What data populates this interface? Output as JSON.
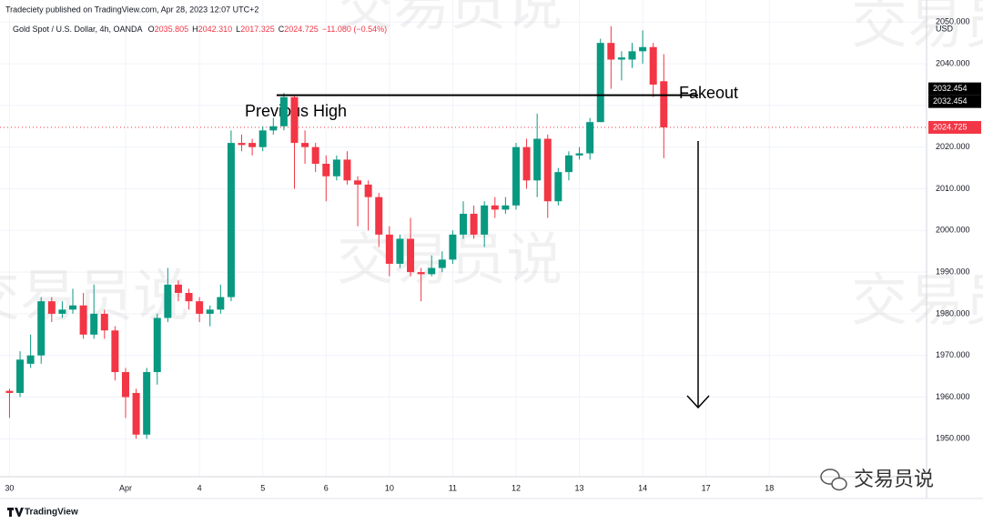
{
  "chart_data": {
    "type": "candlestick",
    "publisher": "Tradeciety published on TradingView.com, Apr 28, 2023 12:07 UTC+2",
    "symbol": "Gold Spot / U.S. Dollar, 4h, OANDA",
    "ohlc_header": [
      {
        "key": "O",
        "value": "2035.805"
      },
      {
        "key": "H",
        "value": "2042.310"
      },
      {
        "key": "L",
        "value": "2017.325"
      },
      {
        "key": "C",
        "value": "2024.725"
      }
    ],
    "change": "−11.080 (−0.54%)",
    "currency": "USD",
    "brand": "TradingView",
    "watermark": "交易员说",
    "up_color": "#089981",
    "down_color": "#f23645",
    "open": [
      1961.5,
      1961,
      1968,
      1970,
      1983,
      1980,
      1981,
      1982,
      1975,
      1980,
      1976,
      1966,
      1961,
      1951,
      1966,
      1979,
      1987,
      1985,
      1983,
      1980,
      1981,
      1984,
      2021,
      2021,
      2020,
      2024,
      2025,
      2032,
      2021,
      2020,
      2016,
      2013,
      2017,
      2012,
      2011,
      2008,
      1999,
      1992,
      1998,
      1990,
      1989.5,
      1991,
      1993,
      1999,
      2004,
      1999,
      2006,
      2005,
      2006,
      2020,
      2012,
      2022,
      2007,
      2014,
      2018,
      2018.5,
      2026,
      2045,
      2041,
      2041,
      2043,
      2044,
      2035.805
    ],
    "high": [
      1962,
      1971,
      1975,
      1984,
      1984,
      1983,
      1986,
      1985,
      1987,
      1981,
      1977,
      1967,
      1962,
      1967,
      1980,
      1991,
      1988,
      1986,
      1984,
      1982,
      1987,
      2024,
      2023,
      2022,
      2025,
      2027,
      2033,
      2032.5,
      2024,
      2021,
      2018,
      2018,
      2019,
      2013,
      2012,
      2009,
      2001,
      1999,
      2003,
      1991,
      1994,
      1995,
      2000,
      2007,
      2006,
      2007,
      2008,
      2008,
      2021,
      2022,
      2028,
      2023,
      2015,
      2019,
      2020,
      2027,
      2046,
      2049,
      2043,
      2045,
      2048,
      2045,
      2042.31
    ],
    "low": [
      1955,
      1960,
      1967,
      1968,
      1978,
      1979,
      1980,
      1974,
      1974,
      1974,
      1964,
      1955,
      1950,
      1950,
      1963,
      1978,
      1983,
      1981,
      1978,
      1977,
      1980,
      1983,
      2019,
      2018,
      2019,
      2023,
      2024,
      2010,
      2016,
      2014,
      2007,
      2012,
      2011,
      2001,
      2000,
      1996,
      1989,
      1991,
      1989,
      1983,
      1989,
      1990,
      1992,
      1998,
      1998,
      1996,
      2003,
      2004,
      2005,
      2010,
      2008,
      2003,
      2006,
      2012,
      2017,
      2017,
      2026,
      2034,
      2036,
      2039,
      2040,
      2032,
      2017.325
    ],
    "close": [
      1961,
      1969,
      1970,
      1983,
      1980,
      1981,
      1982,
      1975,
      1980,
      1976,
      1966,
      1960,
      1951,
      1966,
      1979,
      1987,
      1985,
      1983,
      1980,
      1981,
      1984,
      2021,
      2020.5,
      2020,
      2024,
      2025,
      2032,
      2021,
      2020,
      2016,
      2013,
      2017,
      2012,
      2011,
      2008,
      1999,
      1992,
      1998,
      1990,
      1989.5,
      1991,
      1993,
      1999,
      2004,
      1999,
      2006,
      2005,
      2006,
      2020,
      2012,
      2022,
      2007,
      2014,
      2018,
      2018.5,
      2026,
      2045,
      2041,
      2041.5,
      2043,
      2044,
      2035,
      2024.725
    ],
    "xlim": [
      -0.9,
      86.9
    ],
    "xticks": [
      {
        "value": 0,
        "label": "30"
      },
      {
        "value": 11,
        "label": "Apr"
      },
      {
        "value": 18,
        "label": "4"
      },
      {
        "value": 24,
        "label": "5"
      },
      {
        "value": 30,
        "label": "6"
      },
      {
        "value": 36,
        "label": "10"
      },
      {
        "value": 42,
        "label": "11"
      },
      {
        "value": 48,
        "label": "12"
      },
      {
        "value": 54,
        "label": "13"
      },
      {
        "value": 60,
        "label": "14"
      },
      {
        "value": 66,
        "label": "17"
      },
      {
        "value": 72,
        "label": "18"
      }
    ],
    "ylim": [
      1940.9,
      2055.3
    ],
    "yticks": [
      {
        "value": 1950,
        "label": "1950.000"
      },
      {
        "value": 1960,
        "label": "1960.000"
      },
      {
        "value": 1970,
        "label": "1970.000"
      },
      {
        "value": 1980,
        "label": "1980.000"
      },
      {
        "value": 1990,
        "label": "1990.000"
      },
      {
        "value": 2000,
        "label": "2000.000"
      },
      {
        "value": 2010,
        "label": "2010.000"
      },
      {
        "value": 2020,
        "label": "2020.000"
      },
      {
        "value": 2030,
        "label": "2030.000"
      },
      {
        "value": 2040,
        "label": "2040.000"
      },
      {
        "value": 2050,
        "label": "2050.000"
      }
    ],
    "grid": true,
    "level": {
      "value": 2032.454,
      "label": "Previous High"
    },
    "fakeout_label": "Fakeout",
    "price_tags": [
      {
        "value": 2032.454,
        "label": "2032.454",
        "color": "#000000"
      },
      {
        "value": 2032.454,
        "label": "2032.454",
        "color": "#000000"
      },
      {
        "value": 2024.725,
        "label": "2024.725",
        "color": "#f23645"
      }
    ]
  }
}
